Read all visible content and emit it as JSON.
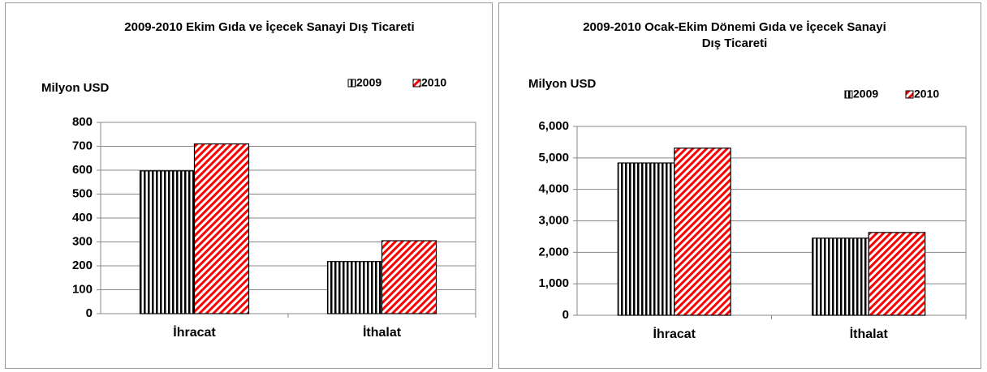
{
  "chart_data": [
    {
      "type": "bar",
      "title": "2009-2010 Ekim Gıda ve İçecek Sanayi Dış Ticareti",
      "ylabel": "Milyon USD",
      "categories": [
        "İhracat",
        "İthalat"
      ],
      "series": [
        {
          "name": "2009",
          "color": "#000000",
          "pattern": "vertical",
          "values": [
            597,
            218
          ]
        },
        {
          "name": "2010",
          "color": "#ff0000",
          "pattern": "diagonal",
          "values": [
            710,
            305
          ]
        }
      ],
      "ylim": [
        0,
        800
      ],
      "yticks": [
        0,
        100,
        200,
        300,
        400,
        500,
        600,
        700,
        800
      ],
      "grid": true,
      "legend": "top-right"
    },
    {
      "type": "bar",
      "title": "2009-2010 Ocak-Ekim Dönemi Gıda ve İçecek Sanayi Dış Ticareti",
      "ylabel": "Milyon USD",
      "categories": [
        "İhracat",
        "İthalat"
      ],
      "series": [
        {
          "name": "2009",
          "color": "#000000",
          "pattern": "vertical",
          "values": [
            4840,
            2450
          ]
        },
        {
          "name": "2010",
          "color": "#ff0000",
          "pattern": "diagonal",
          "values": [
            5310,
            2630
          ]
        }
      ],
      "ylim": [
        0,
        6000
      ],
      "yticks": [
        0,
        {
          "value": 1000,
          "label": "1,000"
        },
        {
          "value": 2000,
          "label": "2,000"
        },
        {
          "value": 3000,
          "label": "3,000"
        },
        {
          "value": 4000,
          "label": "4,000"
        },
        {
          "value": 5000,
          "label": "5,000"
        },
        {
          "value": 6000,
          "label": "6,000"
        }
      ],
      "grid": true,
      "legend": "top-right"
    }
  ]
}
